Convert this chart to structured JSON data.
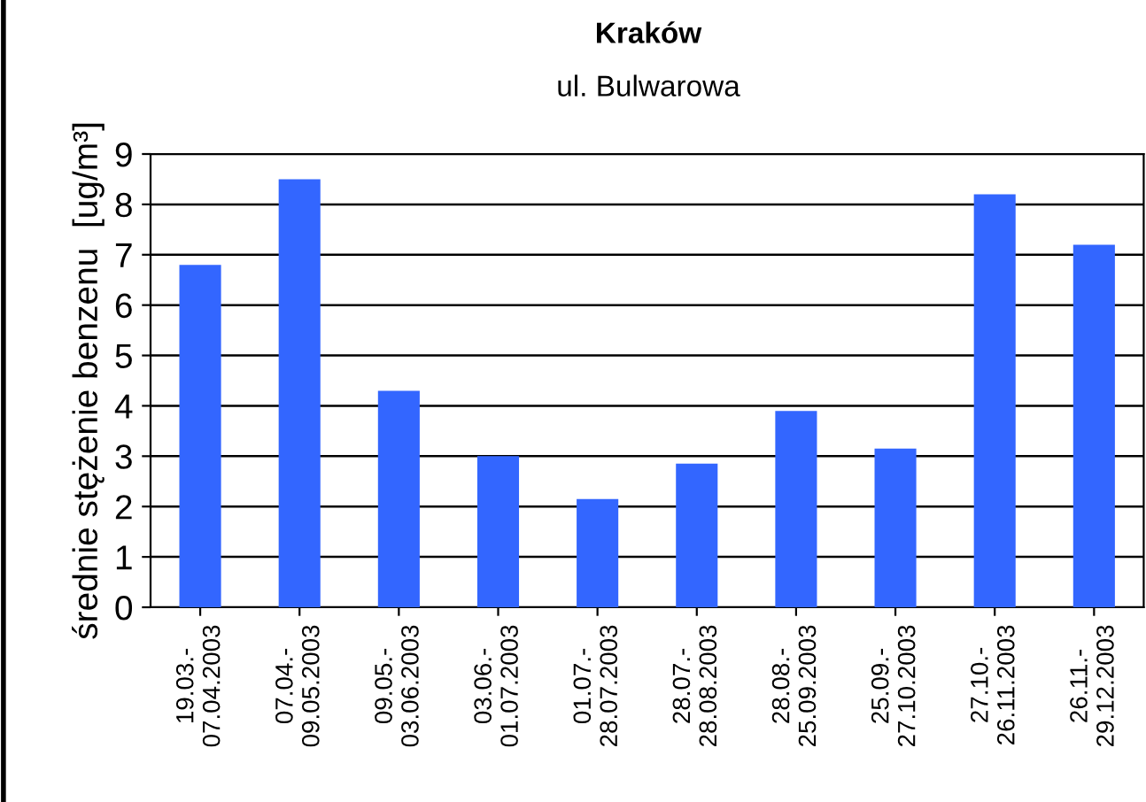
{
  "chart_data": {
    "type": "bar",
    "title": "Kraków",
    "subtitle": "ul. Bulwarowa",
    "ylabel": "średnie stężenie benzenu  [ug/m³]",
    "categories": [
      "19.03.-\n07.04.2003",
      "07.04.-\n09.05.2003",
      "09.05.-\n03.06.2003",
      "03.06.-\n01.07.2003",
      "01.07.-\n28.07.2003",
      "28.07.-\n28.08.2003",
      "28.08.-\n25.09.2003",
      "25.09.-\n27.10.2003",
      "27.10.-\n26.11.2003",
      "26.11.-\n29.12.2003"
    ],
    "values": [
      6.8,
      8.5,
      4.3,
      3.0,
      2.15,
      2.85,
      3.9,
      3.15,
      8.2,
      7.2
    ],
    "color": "#3366ff",
    "ylim": [
      0,
      9
    ],
    "yticks": [
      0,
      1,
      2,
      3,
      4,
      5,
      6,
      7,
      8,
      9
    ],
    "grid": "y",
    "legend": false
  }
}
